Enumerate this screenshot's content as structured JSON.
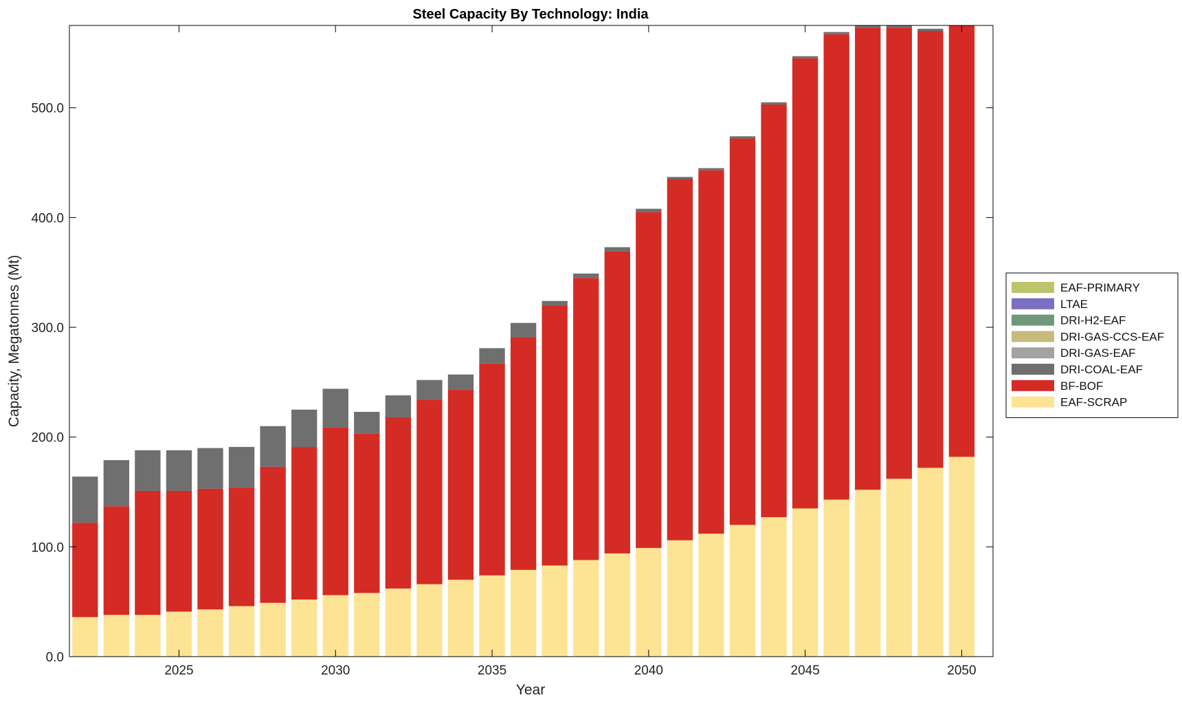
{
  "chart_data": {
    "type": "bar",
    "stacked": true,
    "title": "Steel Capacity By Technology: India",
    "xlabel": "Year",
    "ylabel": "Capacity, Megatonnes (Mt)",
    "ylim": [
      0,
      575
    ],
    "xlim": [
      2021.5,
      2051
    ],
    "yticks": [
      0,
      100,
      200,
      300,
      400,
      500
    ],
    "ytick_labels": [
      "0.0",
      "100.0",
      "200.0",
      "300.0",
      "400.0",
      "500.0"
    ],
    "xticks": [
      2025,
      2030,
      2035,
      2040,
      2045,
      2050
    ],
    "xtick_labels": [
      "2025",
      "2030",
      "2035",
      "2040",
      "2045",
      "2050"
    ],
    "grid": false,
    "legend_position": "right",
    "x": [
      2022,
      2023,
      2024,
      2025,
      2026,
      2027,
      2028,
      2029,
      2030,
      2031,
      2032,
      2033,
      2034,
      2035,
      2036,
      2037,
      2038,
      2039,
      2040,
      2041,
      2042,
      2043,
      2044,
      2045,
      2046,
      2047,
      2048,
      2049,
      2050
    ],
    "series": [
      {
        "name": "EAF-SCRAP",
        "color": "#fde394",
        "values": [
          36,
          38,
          38,
          41,
          43,
          46,
          49,
          52,
          56,
          58,
          62,
          66,
          70,
          74,
          79,
          83,
          88,
          94,
          99,
          106,
          112,
          120,
          127,
          135,
          143,
          152,
          162,
          172,
          182
        ]
      },
      {
        "name": "BF-BOF",
        "color": "#d42b25",
        "values": [
          86,
          99,
          113,
          110,
          110,
          108,
          124,
          139,
          153,
          145,
          156,
          168,
          173,
          193,
          212,
          237,
          257,
          275,
          306,
          329,
          331,
          352,
          376,
          410,
          424,
          421,
          411,
          398,
          393
        ]
      },
      {
        "name": "DRI-COAL-EAF",
        "color": "#6f6f6f",
        "values": [
          42,
          42,
          37,
          37,
          37,
          37,
          37,
          34,
          35,
          20,
          20,
          18,
          14,
          14,
          13,
          4,
          4,
          4,
          3,
          2,
          2,
          2,
          2,
          2,
          2,
          2,
          2,
          2,
          1
        ]
      },
      {
        "name": "DRI-GAS-EAF",
        "color": "#a3a3a1",
        "values": [
          0,
          0,
          0,
          0,
          0,
          0,
          0,
          0,
          0,
          0,
          0,
          0,
          0,
          0,
          0,
          0,
          0,
          0,
          0,
          0,
          0,
          0,
          0,
          0,
          0,
          0,
          0,
          0,
          0
        ]
      },
      {
        "name": "DRI-GAS-CCS-EAF",
        "color": "#c6bb7b",
        "values": [
          0,
          0,
          0,
          0,
          0,
          0,
          0,
          0,
          0,
          0,
          0,
          0,
          0,
          0,
          0,
          0,
          0,
          0,
          0,
          0,
          0,
          0,
          0,
          0,
          0,
          0,
          0,
          0,
          0
        ]
      },
      {
        "name": "DRI-H2-EAF",
        "color": "#6f9878",
        "values": [
          0,
          0,
          0,
          0,
          0,
          0,
          0,
          0,
          0,
          0,
          0,
          0,
          0,
          0,
          0,
          0,
          0,
          0,
          0,
          0,
          0,
          0,
          0,
          0,
          0,
          0,
          0,
          0,
          0
        ]
      },
      {
        "name": "LTAE",
        "color": "#7a6fc0",
        "values": [
          0,
          0,
          0,
          0,
          0,
          0,
          0,
          0,
          0,
          0,
          0,
          0,
          0,
          0,
          0,
          0,
          0,
          0,
          0,
          0,
          0,
          0,
          0,
          0,
          0,
          0,
          0,
          0,
          0
        ]
      },
      {
        "name": "EAF-PRIMARY",
        "color": "#bcc56a",
        "values": [
          0,
          0,
          0,
          0,
          0,
          0,
          0,
          0,
          0,
          0,
          0,
          0,
          0,
          0,
          0,
          0,
          0,
          0,
          0,
          0,
          0,
          0,
          0,
          0,
          0,
          0,
          0,
          0,
          0
        ]
      }
    ],
    "legend_order": [
      "EAF-PRIMARY",
      "LTAE",
      "DRI-H2-EAF",
      "DRI-GAS-CCS-EAF",
      "DRI-GAS-EAF",
      "DRI-COAL-EAF",
      "BF-BOF",
      "EAF-SCRAP"
    ]
  }
}
